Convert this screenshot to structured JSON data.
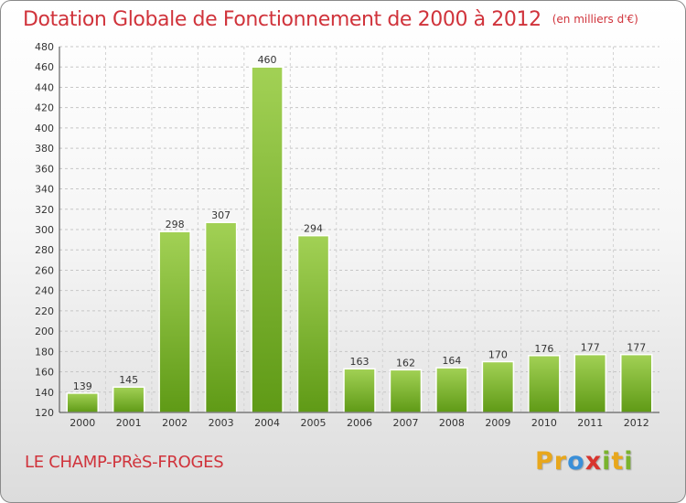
{
  "header": {
    "title": "Dotation Globale de Fonctionnement de 2000 à 2012",
    "unit": "(en milliers d'€)"
  },
  "commune": "LE CHAMP-PRèS-FROGES",
  "logo": {
    "letters": [
      "P",
      "r",
      "o",
      "x",
      "i",
      "t",
      "i"
    ],
    "colors": [
      "#e8a71c",
      "#e8a71c",
      "#3a8fd8",
      "#d8342e",
      "#7ab32e",
      "#e8a71c",
      "#7ab32e"
    ]
  },
  "chart_data": {
    "type": "bar",
    "title": "Dotation Globale de Fonctionnement de 2000 à 2012",
    "subtitle": "(en milliers d'€)",
    "categories": [
      "2000",
      "2001",
      "2002",
      "2003",
      "2004",
      "2005",
      "2006",
      "2007",
      "2008",
      "2009",
      "2010",
      "2011",
      "2012"
    ],
    "values": [
      139,
      145,
      298,
      307,
      460,
      294,
      163,
      162,
      164,
      170,
      176,
      177,
      177
    ],
    "data_labels": [
      "139",
      "145",
      "298",
      "307",
      "460",
      "294",
      "163",
      "162",
      "164",
      "170",
      "176",
      "177",
      "177"
    ],
    "ylim": [
      120,
      480
    ],
    "yticks": [
      120,
      140,
      160,
      180,
      200,
      220,
      240,
      260,
      280,
      300,
      320,
      340,
      360,
      380,
      400,
      420,
      440,
      460,
      480
    ],
    "grid": true,
    "bar_color": "#7ab32e"
  }
}
